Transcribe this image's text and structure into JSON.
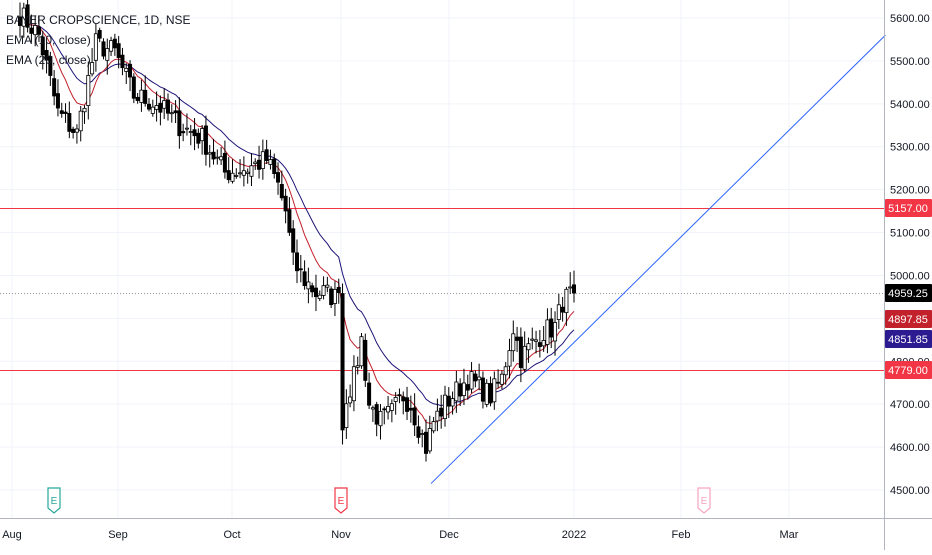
{
  "chart_data": {
    "type": "candlestick",
    "title": "BAYER CROPSCIENCE, 1D, NSE",
    "indicators": [
      "EMA (10, close)",
      "EMA (20, close)"
    ],
    "x_labels": [
      "Aug",
      "Sep",
      "Oct",
      "Nov",
      "Dec",
      "2022",
      "Feb",
      "Mar"
    ],
    "y_ticks": [
      "5600.00",
      "5500.00",
      "5400.00",
      "5300.00",
      "5200.00",
      "5100.00",
      "5000.00",
      "4900.00",
      "4800.00",
      "4700.00",
      "4600.00",
      "4500.00"
    ],
    "ylim": [
      4475,
      5645
    ],
    "last_price": "4959.25",
    "ema10_value": "4897.85",
    "ema20_value": "4851.85",
    "horizontal_levels": [
      {
        "value": 5157,
        "label": "5157.00"
      },
      {
        "value": 4779,
        "label": "4779.00"
      }
    ],
    "trendline": {
      "start": {
        "date": "2021-11-26",
        "price": 4515
      },
      "end": {
        "date": "2022-03-26",
        "price": 5560
      }
    },
    "event_markers": [
      "E",
      "E",
      "E"
    ],
    "colors": {
      "up": "#ffffff",
      "down": "#000000",
      "wick": "#000000",
      "ema10": "#c2202b",
      "ema20": "#1c1478",
      "level": "#f23645",
      "trendline": "#2962ff",
      "last_price_bg": "#000000",
      "ema10_bg": "#c2202b",
      "ema20_bg": "#2c1b90",
      "earnings_teal": "#26a69a",
      "earnings_red": "#f23645",
      "earnings_pink": "#f7a4c0"
    }
  }
}
